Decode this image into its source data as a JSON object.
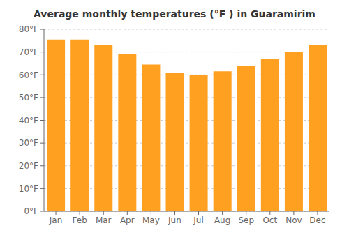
{
  "chart_data": {
    "type": "bar",
    "title": "Average monthly temperatures (°F ) in Guaramirim",
    "categories": [
      "Jan",
      "Feb",
      "Mar",
      "Apr",
      "May",
      "Jun",
      "Jul",
      "Aug",
      "Sep",
      "Oct",
      "Nov",
      "Dec"
    ],
    "values": [
      75.5,
      75.5,
      73.0,
      69.0,
      64.5,
      61.0,
      60.0,
      61.5,
      64.0,
      67.0,
      70.0,
      73.0
    ],
    "color": "#FFA020",
    "ylim": [
      0,
      80
    ],
    "yticks": [
      {
        "value": 0,
        "label": "0°F"
      },
      {
        "value": 10,
        "label": "10°F"
      },
      {
        "value": 20,
        "label": "20°F"
      },
      {
        "value": 30,
        "label": "30°F"
      },
      {
        "value": 40,
        "label": "40°F"
      },
      {
        "value": 50,
        "label": "50°F"
      },
      {
        "value": 60,
        "label": "60°F"
      },
      {
        "value": 70,
        "label": "70°F"
      },
      {
        "value": 80,
        "label": "80°F"
      }
    ],
    "grid": true
  }
}
